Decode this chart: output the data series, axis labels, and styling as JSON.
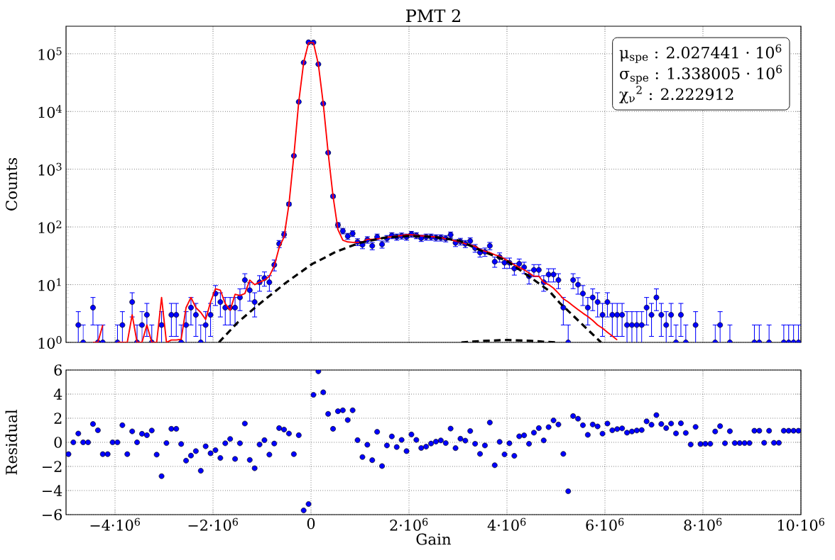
{
  "chart_data": [
    {
      "type": "scatter",
      "title": "PMT 2",
      "ylabel": "Counts",
      "log": true,
      "grid": true,
      "tick_labels": "y",
      "xlim": [
        -5000000,
        10000000
      ],
      "ylim": [
        1,
        300000
      ],
      "xticks": [
        {
          "value": -4000000,
          "label": null
        },
        {
          "value": -2000000,
          "label": null
        },
        {
          "value": 0,
          "label": null
        },
        {
          "value": 2000000,
          "label": null
        },
        {
          "value": 4000000,
          "label": null
        },
        {
          "value": 6000000,
          "label": null
        },
        {
          "value": 8000000,
          "label": null
        },
        {
          "value": 10000000,
          "label": null
        }
      ],
      "yticks": [
        {
          "value": 1,
          "label": "10$^{0}$"
        },
        {
          "value": 10,
          "label": "10$^{1}$"
        },
        {
          "value": 100,
          "label": "10$^{2}$"
        },
        {
          "value": 1000,
          "label": "10$^{3}$"
        },
        {
          "value": 10000,
          "label": "10$^{4}$"
        },
        {
          "value": 100000,
          "label": "10$^{5}$"
        }
      ],
      "annotations": [
        "μ$_{spe}$ : 2.027441 · 10$^{6}$",
        "σ$_{spe}$ : 1.338005 · 10$^{6}$",
        "χ$_{ν}$$^{2}$ : 2.222912"
      ],
      "x": [
        -4750000,
        -4650000,
        -4550000,
        -4450000,
        -4350000,
        -4250000,
        -4150000,
        -4050000,
        -3950000,
        -3850000,
        -3750000,
        -3650000,
        -3550000,
        -3450000,
        -3350000,
        -3250000,
        -3150000,
        -3050000,
        -2950000,
        -2850000,
        -2750000,
        -2650000,
        -2550000,
        -2450000,
        -2350000,
        -2250000,
        -2150000,
        -2050000,
        -1950000,
        -1850000,
        -1750000,
        -1650000,
        -1550000,
        -1450000,
        -1350000,
        -1250000,
        -1150000,
        -1050000,
        -950000,
        -850000,
        -750000,
        -650000,
        -550000,
        -450000,
        -350000,
        -250000,
        -150000,
        -50000,
        50000,
        150000,
        250000,
        350000,
        450000,
        550000,
        650000,
        750000,
        850000,
        950000,
        1050000,
        1150000,
        1250000,
        1350000,
        1450000,
        1550000,
        1650000,
        1750000,
        1850000,
        1950000,
        2050000,
        2150000,
        2250000,
        2350000,
        2450000,
        2550000,
        2650000,
        2750000,
        2850000,
        2950000,
        3050000,
        3150000,
        3250000,
        3350000,
        3450000,
        3550000,
        3650000,
        3750000,
        3850000,
        3950000,
        4050000,
        4150000,
        4250000,
        4350000,
        4450000,
        4550000,
        4650000,
        4750000,
        4850000,
        4950000,
        5050000,
        5150000,
        5250000,
        5350000,
        5450000,
        5550000,
        5650000,
        5750000,
        5850000,
        5950000,
        6050000,
        6150000,
        6250000,
        6350000,
        6450000,
        6550000,
        6650000,
        6750000,
        6850000,
        6950000,
        7050000,
        7150000,
        7250000,
        7350000,
        7450000,
        7550000,
        7650000,
        7750000,
        7850000,
        7950000,
        8050000,
        8150000,
        8250000,
        8350000,
        8450000,
        8550000,
        8650000,
        8750000,
        8850000,
        8950000,
        9050000,
        9150000,
        9250000,
        9350000,
        9450000,
        9550000,
        9650000,
        9750000,
        9850000,
        9950000
      ],
      "series": [
        {
          "color": "#0000ff",
          "marker": "circle",
          "values": [
            2,
            1,
            null,
            4,
            1,
            1,
            null,
            null,
            1,
            2,
            null,
            5,
            1,
            2,
            3,
            1,
            null,
            2,
            null,
            3,
            3,
            1,
            2,
            4,
            3,
            1,
            2,
            3,
            7,
            5,
            4,
            4,
            4,
            6,
            12,
            8,
            5,
            11,
            13,
            11,
            22,
            51,
            74,
            248,
            1706,
            14700,
            70300,
            158000,
            157000,
            65900,
            13700,
            1930,
            339,
            108,
            85,
            69,
            77,
            55,
            49,
            60,
            47,
            67,
            50,
            63,
            71,
            67,
            70,
            67,
            75,
            71,
            64,
            67,
            67,
            65,
            65,
            63,
            73,
            53,
            56,
            51,
            57,
            43,
            36,
            37,
            47,
            25,
            30,
            24,
            24,
            19,
            23,
            20,
            14,
            18,
            18,
            11,
            15,
            15,
            12,
            4,
            1,
            12,
            10,
            7,
            4,
            6,
            5,
            3,
            5,
            3,
            3,
            3,
            2,
            2,
            2,
            2,
            4,
            3,
            6,
            3,
            2,
            3,
            1,
            3,
            1,
            null,
            2,
            null,
            null,
            null,
            1,
            2,
            null,
            1,
            null,
            null,
            null,
            null,
            1,
            1,
            null,
            1,
            null,
            null,
            1,
            1,
            1,
            1
          ],
          "errors": [
            1.41,
            1,
            null,
            2,
            1,
            1,
            null,
            null,
            1,
            1.41,
            null,
            2.24,
            1,
            1.41,
            1.73,
            1,
            null,
            1.41,
            null,
            1.73,
            1.73,
            1,
            1.41,
            2,
            1.73,
            1,
            1.41,
            1.73,
            2.65,
            2.24,
            2,
            2,
            2,
            2.45,
            3.46,
            2.83,
            2.24,
            3.32,
            3.61,
            3.32,
            4.69,
            7.14,
            8.6,
            15.7,
            41.3,
            121,
            265,
            397,
            396,
            257,
            117,
            43.9,
            18.4,
            10.39,
            9.22,
            8.31,
            8.77,
            7.42,
            7,
            7.75,
            6.86,
            8.19,
            7.07,
            7.94,
            8.43,
            8.19,
            8.37,
            8.19,
            8.66,
            8.43,
            8,
            8.19,
            8.19,
            8.06,
            8.06,
            7.94,
            8.54,
            7.28,
            7.48,
            7.14,
            7.55,
            6.56,
            6,
            6.08,
            6.86,
            5,
            5.48,
            4.9,
            4.9,
            4.36,
            4.8,
            4.47,
            3.74,
            4.24,
            4.24,
            3.32,
            3.87,
            3.87,
            3.46,
            2,
            1,
            3.46,
            3.16,
            2.65,
            2,
            2.45,
            2.24,
            1.73,
            2.24,
            1.73,
            1.73,
            1.73,
            1.41,
            1.41,
            1.41,
            1.41,
            2,
            1.73,
            2.45,
            1.73,
            1.41,
            1.73,
            1,
            1.73,
            1,
            null,
            1.41,
            null,
            null,
            null,
            1,
            1.41,
            null,
            1,
            null,
            null,
            null,
            null,
            1,
            1,
            null,
            1,
            null,
            null,
            1,
            1,
            1,
            1
          ]
        },
        {
          "type": "line",
          "color": "#ff0000",
          "marker": "none",
          "line_style": "solid",
          "values": [
            null,
            null,
            null,
            1,
            1,
            2,
            null,
            null,
            1,
            1,
            1,
            3,
            1,
            1,
            2,
            1,
            1,
            6,
            1,
            1.1,
            1.1,
            1.13,
            4,
            6,
            4,
            3.3,
            2.5,
            5,
            8.5,
            8,
            4.7,
            3.6,
            6.8,
            6.5,
            7,
            12,
            10,
            11,
            12,
            14,
            21,
            44,
            67,
            248,
            1706,
            14700,
            70300,
            155000,
            155000,
            65900,
            13700,
            1930,
            339,
            90,
            59,
            55,
            54,
            54,
            55,
            61,
            61,
            62,
            64,
            66,
            68,
            69,
            71,
            73,
            73,
            72,
            70,
            70,
            68,
            67,
            66,
            62,
            60,
            57,
            55,
            51,
            49,
            46,
            41,
            38,
            36,
            33,
            31,
            28,
            25,
            22,
            20,
            18,
            16,
            14,
            14,
            11,
            10,
            8.7,
            7.1,
            5.7,
            5,
            4.3,
            3.7,
            3.2,
            2.8,
            2.4,
            2,
            1.76,
            1.5,
            1.29,
            1.1,
            null,
            null,
            null,
            null,
            null,
            null,
            null,
            null,
            null,
            null,
            null,
            null,
            null,
            null,
            null,
            null,
            null,
            null,
            null,
            null,
            null,
            null,
            null,
            null,
            null,
            null,
            null,
            null,
            null,
            null,
            null,
            null,
            null,
            null,
            null,
            null,
            null
          ]
        },
        {
          "type": "line",
          "color": "#000000",
          "marker": "none",
          "line_style": "dashed",
          "x": [
            -1880000,
            -1500000,
            -1085000,
            -500000,
            30000,
            270000,
            500000,
            995000,
            1500000,
            2010000,
            2500000,
            3020000,
            3500000,
            3990000,
            4500000,
            4860000,
            5070000,
            5500000,
            5920000
          ],
          "values": [
            1,
            2.2,
            4.4,
            11,
            23,
            29,
            37,
            53,
            65,
            70,
            67,
            58,
            38,
            26,
            13,
            7.8,
            4.9,
            2.2,
            1
          ]
        },
        {
          "type": "line",
          "color": "#000000",
          "marker": "none",
          "line_style": "dashed",
          "x": [
            3070000,
            3500000,
            4000000,
            4500000,
            5000000
          ],
          "values": [
            1,
            1.06,
            1.1,
            1.06,
            1
          ]
        }
      ]
    },
    {
      "type": "scatter",
      "xlabel": "Gain",
      "ylabel": "Residual",
      "grid": true,
      "xlim": [
        -5000000,
        10000000
      ],
      "ylim": [
        -6,
        6
      ],
      "xticks": [
        {
          "value": -4000000,
          "label": "−4·10$^{6}$"
        },
        {
          "value": -2000000,
          "label": "−2·10$^{6}$"
        },
        0,
        {
          "value": 2000000,
          "label": "2·10$^{6}$"
        },
        {
          "value": 4000000,
          "label": "4·10$^{6}$"
        },
        {
          "value": 6000000,
          "label": "6·10$^{6}$"
        },
        {
          "value": 8000000,
          "label": "8·10$^{6}$"
        },
        {
          "value": 10000000,
          "label": "10·10$^{6}$"
        }
      ],
      "yticks": [
        {
          "value": -6,
          "label": "−6"
        },
        {
          "value": -4,
          "label": "−4"
        },
        {
          "value": -2,
          "label": "−2"
        },
        0,
        2,
        4,
        6
      ],
      "x": [
        -4950000,
        -4850000,
        -4750000,
        -4650000,
        -4550000,
        -4450000,
        -4350000,
        -4250000,
        -4150000,
        -4050000,
        -3950000,
        -3850000,
        -3750000,
        -3650000,
        -3550000,
        -3450000,
        -3350000,
        -3250000,
        -3150000,
        -3050000,
        -2950000,
        -2850000,
        -2750000,
        -2650000,
        -2550000,
        -2450000,
        -2350000,
        -2250000,
        -2150000,
        -2050000,
        -1950000,
        -1850000,
        -1750000,
        -1650000,
        -1550000,
        -1450000,
        -1350000,
        -1250000,
        -1150000,
        -1050000,
        -950000,
        -850000,
        -750000,
        -650000,
        -550000,
        -450000,
        -350000,
        -250000,
        -150000,
        -50000,
        50000,
        150000,
        250000,
        350000,
        450000,
        550000,
        650000,
        750000,
        850000,
        950000,
        1050000,
        1150000,
        1250000,
        1350000,
        1450000,
        1550000,
        1650000,
        1750000,
        1850000,
        1950000,
        2050000,
        2150000,
        2250000,
        2350000,
        2450000,
        2550000,
        2650000,
        2750000,
        2850000,
        2950000,
        3050000,
        3150000,
        3250000,
        3350000,
        3450000,
        3550000,
        3650000,
        3750000,
        3850000,
        3950000,
        4050000,
        4150000,
        4250000,
        4350000,
        4450000,
        4550000,
        4650000,
        4750000,
        4850000,
        4950000,
        5050000,
        5150000,
        5250000,
        5350000,
        5450000,
        5550000,
        5650000,
        5750000,
        5850000,
        5950000,
        6050000,
        6150000,
        6250000,
        6350000,
        6450000,
        6550000,
        6650000,
        6750000,
        6850000,
        6950000,
        7050000,
        7150000,
        7250000,
        7350000,
        7450000,
        7550000,
        7650000,
        7750000,
        7850000,
        7950000,
        8050000,
        8150000,
        8250000,
        8350000,
        8450000,
        8550000,
        8650000,
        8750000,
        8850000,
        8950000,
        9050000,
        9150000,
        9250000,
        9350000,
        9450000,
        9550000,
        9650000,
        9750000,
        9850000,
        9950000
      ],
      "series": [
        {
          "color": "#0000ff",
          "marker": "circle",
          "values": [
            -0.98,
            0,
            0.73,
            0,
            0,
            1.52,
            1.0,
            -0.98,
            -0.98,
            0,
            0,
            1.42,
            -0.98,
            0.91,
            0,
            0.71,
            0.59,
            0.98,
            -1.02,
            -2.81,
            -0.06,
            1.12,
            1.12,
            -0.14,
            -1.52,
            -1.1,
            -0.73,
            -2.36,
            -0.33,
            -0.91,
            -0.65,
            -1.3,
            -0.08,
            0.28,
            -1.38,
            -0.08,
            1.56,
            -1.46,
            -2.15,
            -0.18,
            0.18,
            -1.02,
            -0.1,
            1.18,
            1.06,
            0.73,
            -0.98,
            0.59,
            -5.65,
            -5.12,
            3.94,
            5.89,
            4.15,
            2.36,
            1.12,
            2.58,
            2.66,
            1.85,
            2.66,
            0.18,
            -1.22,
            -0.2,
            -1.48,
            0.87,
            -1.97,
            -0.26,
            0.49,
            -0.39,
            0.2,
            -0.73,
            0.65,
            0.2,
            -0.47,
            -0.36,
            -0.1,
            0.06,
            0.16,
            -0.06,
            1.14,
            -0.48,
            0.3,
            0.14,
            0.94,
            -0.12,
            -0.96,
            -0.26,
            1.64,
            -1.9,
            0.04,
            -1.0,
            -0.08,
            -1.12,
            0.5,
            0.58,
            -0.12,
            0.8,
            1.18,
            0.16,
            1.26,
            1.82,
            1.48,
            -0.96,
            -4.06,
            2.18,
            1.96,
            1.42,
            0.62,
            1.48,
            1.32,
            0.72,
            1.56,
            1.0,
            1.1,
            1.16,
            0.8,
            0.9,
            0.98,
            1.02,
            1.74,
            1.46,
            2.26,
            1.52,
            1.18,
            1.56,
            0.74,
            1.58,
            0.78,
            -0.18,
            1.28,
            -0.14,
            -0.12,
            -0.12,
            0.9,
            1.34,
            -0.08,
            0.92,
            -0.06,
            -0.06,
            -0.06,
            -0.06,
            0.96,
            0.96,
            -0.04,
            0.96,
            -0.04,
            -0.04,
            0.96,
            0.96,
            0.96,
            0.96
          ]
        }
      ]
    }
  ]
}
